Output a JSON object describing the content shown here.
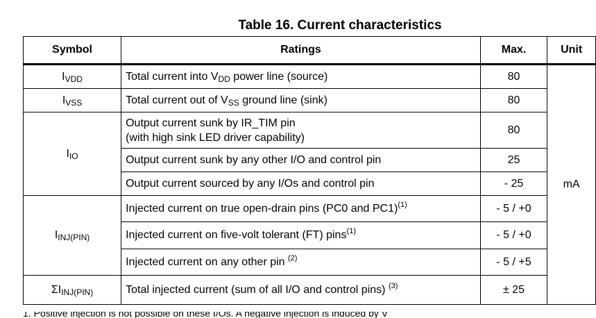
{
  "title": "Table 16. Current characteristics",
  "headers": {
    "symbol": "Symbol",
    "ratings": "Ratings",
    "max": "Max.",
    "unit": "Unit"
  },
  "unit_value": "mA",
  "rows": [
    {
      "sym_main": "I",
      "sym_sub": "VDD",
      "ratings": [
        {
          "pre": "Total current into V",
          "sub": "DD",
          "post": " power line (source)"
        }
      ],
      "max": "80"
    },
    {
      "sym_main": "I",
      "sym_sub": "VSS",
      "ratings": [
        {
          "pre": "Total current out of V",
          "sub": "SS",
          "post": " ground line (sink)"
        }
      ],
      "max": "80"
    },
    {
      "sym_main": "I",
      "sym_sub": "IO",
      "ratings": [
        {
          "line1": "Output current sunk by IR_TIM pin",
          "line2": "(with high sink LED driver capability)"
        }
      ],
      "max": "80"
    },
    {
      "ratings": [
        {
          "pre": "Output current sunk by any other I/O and control pin"
        }
      ],
      "max": "25"
    },
    {
      "ratings": [
        {
          "pre": "Output current sourced by any I/Os and control pin"
        }
      ],
      "max": "- 25"
    },
    {
      "sym_main": "I",
      "sym_sub": "INJ(PIN)",
      "ratings": [
        {
          "pre": "Injected current on true open-drain pins (PC0 and PC1)",
          "sup": "(1)"
        }
      ],
      "max": "- 5 / +0"
    },
    {
      "ratings": [
        {
          "pre": "Injected current on five-volt tolerant (FT) pins",
          "sup": "(1)"
        }
      ],
      "max": "- 5 / +0"
    },
    {
      "ratings": [
        {
          "pre": "Injected current on any other pin ",
          "sup": "(2)"
        }
      ],
      "max": "- 5 / +5"
    },
    {
      "sym_main": "ΣI",
      "sym_sub": "INJ(PIN)",
      "ratings": [
        {
          "pre": "Total injected current (sum of all I/O and control pins) ",
          "sup": "(3)"
        }
      ],
      "max": "± 25"
    }
  ],
  "footnote_partial": "1. Positive injection is not possible on these I/Os. A negative injection is induced by V"
}
